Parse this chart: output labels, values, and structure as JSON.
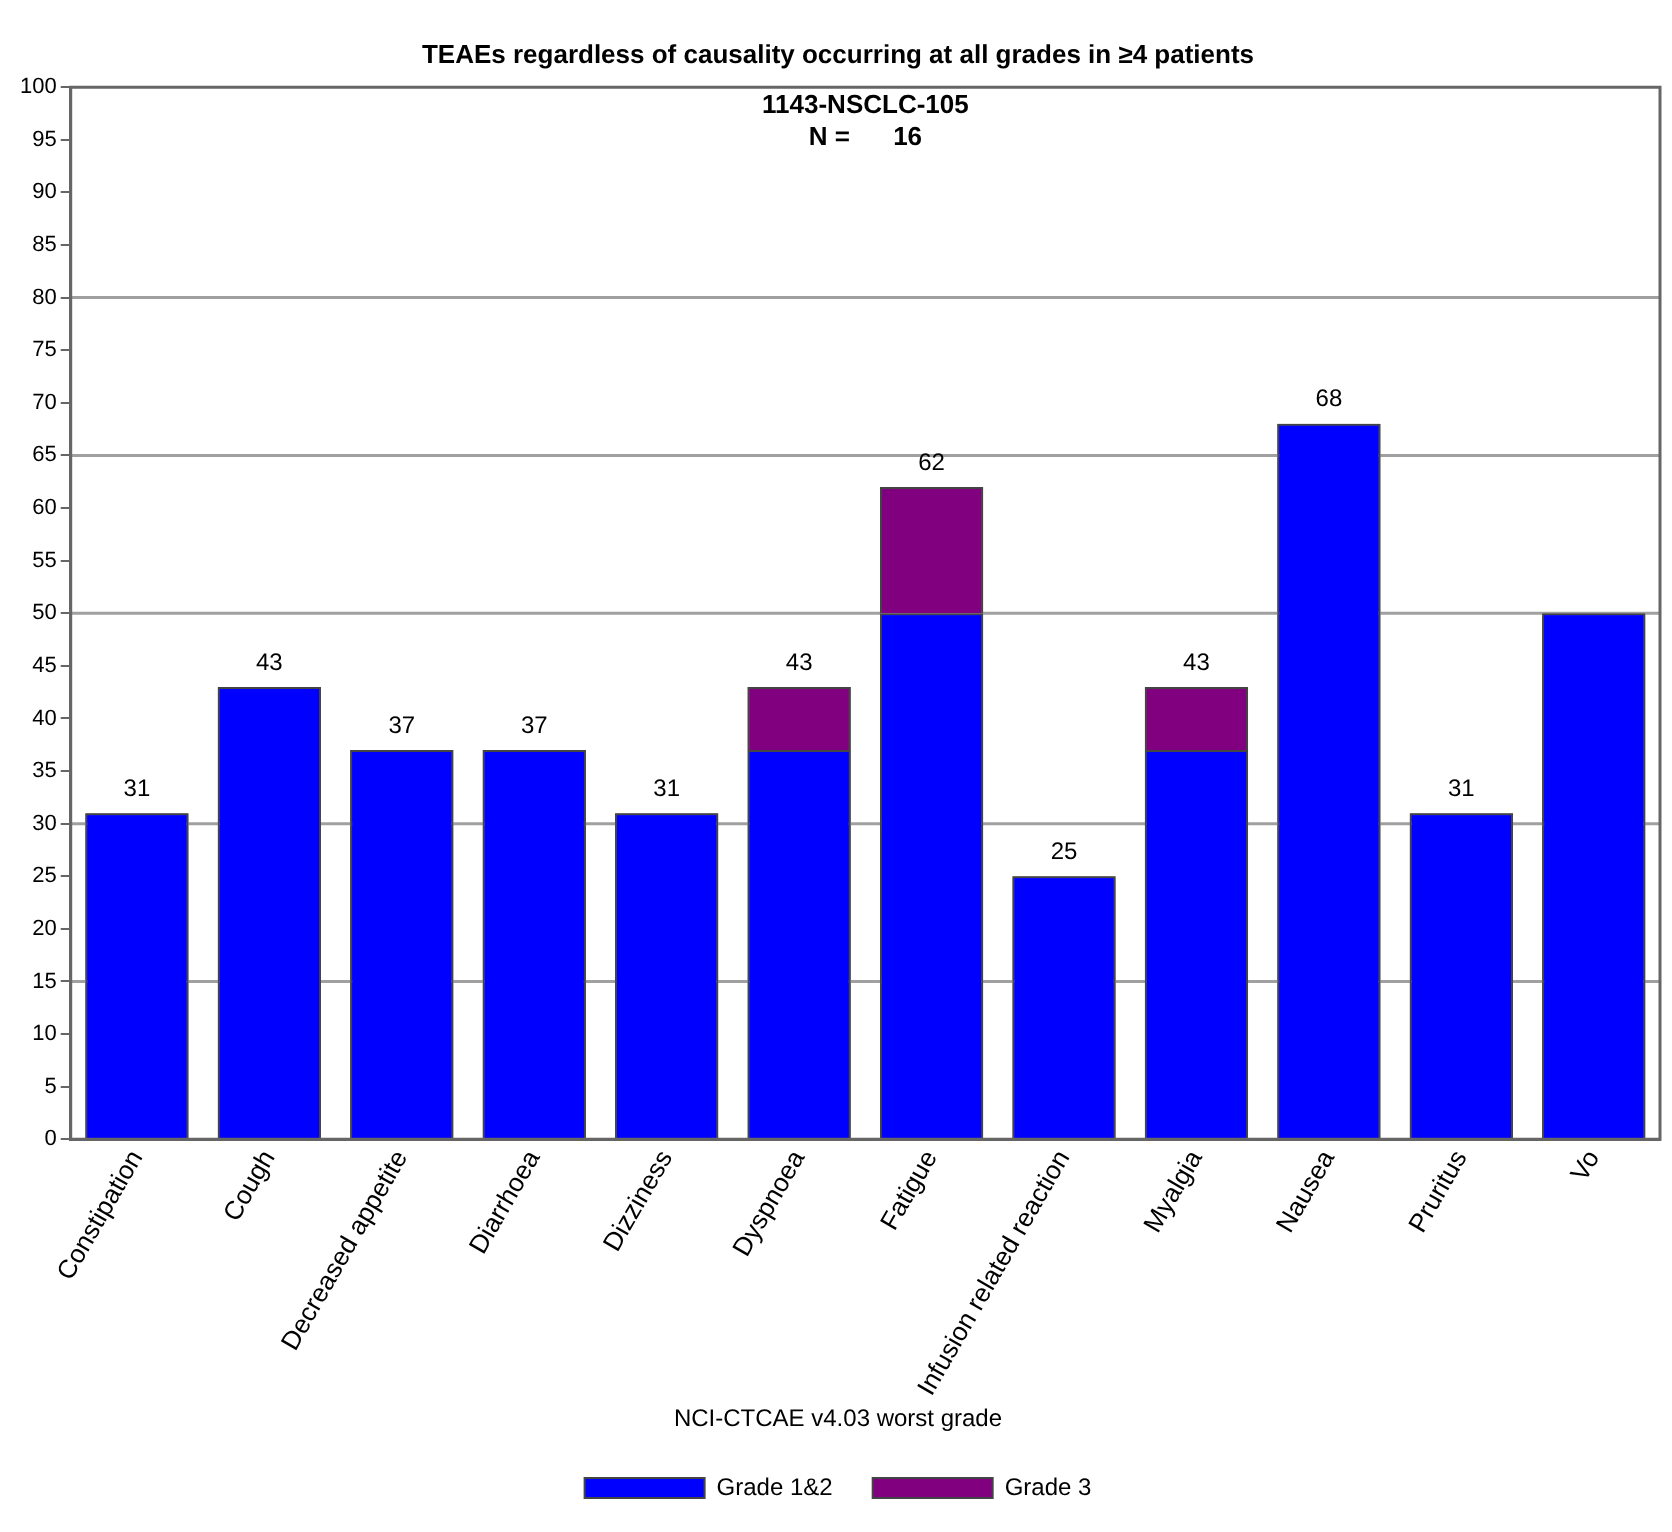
{
  "chart_data": {
    "type": "bar",
    "title": "TEAEs regardless of causality occurring at all grades in ≥4 patients",
    "subtitle": "1143-NSCLC-105",
    "annotations": [
      "N =      16"
    ],
    "categories": [
      "Constipation",
      "Cough",
      "Decreased appetite",
      "Diarrhoea",
      "Dizziness",
      "Dyspnoea",
      "Fatigue",
      "Infusion related reaction",
      "Myalgia",
      "Nausea",
      "Pruritus",
      "Vo"
    ],
    "stacked": true,
    "series": [
      {
        "name": "Grade 1&2",
        "color": "#0000ff",
        "values": [
          31,
          43,
          37,
          37,
          31,
          37,
          50,
          25,
          37,
          68,
          31,
          50
        ]
      },
      {
        "name": "Grade 3",
        "color": "#800080",
        "values": [
          0,
          0,
          0,
          0,
          0,
          6,
          12,
          0,
          6,
          0,
          0,
          0
        ]
      }
    ],
    "totals": [
      "31",
      "43",
      "37",
      "37",
      "31",
      "43",
      "62",
      "25",
      "43",
      "68",
      "31",
      null
    ],
    "ylim": [
      0,
      100
    ],
    "yticks": [
      0,
      5,
      10,
      15,
      20,
      25,
      30,
      35,
      40,
      45,
      50,
      55,
      60,
      65,
      70,
      75,
      80,
      85,
      90,
      95,
      100
    ],
    "ref_lines": [
      {
        "axis": "y",
        "value": 15,
        "color": "#a0a0a0"
      },
      {
        "axis": "y",
        "value": 30,
        "color": "#a0a0a0"
      },
      {
        "axis": "y",
        "value": 50,
        "color": "#a0a0a0"
      },
      {
        "axis": "y",
        "value": 65,
        "color": "#a0a0a0"
      },
      {
        "axis": "y",
        "value": 80,
        "color": "#a0a0a0"
      }
    ],
    "grid": false,
    "legend": "bottom",
    "legend_title": "NCI-CTCAE v4.03 worst grade"
  }
}
